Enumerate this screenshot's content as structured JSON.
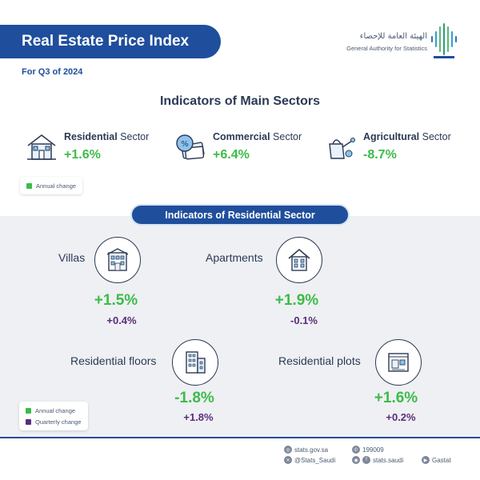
{
  "header": {
    "title": "Real Estate Price Index",
    "subtitle": "For Q3 of 2024",
    "logo_arabic": "الهيئة العامة للإحصاء",
    "logo_english": "General Authority for Statistics"
  },
  "main_sectors": {
    "heading": "Indicators of Main Sectors",
    "items": [
      {
        "name_bold": "Residential",
        "name_rest": " Sector",
        "value": "+1.6%",
        "icon": "house-icon"
      },
      {
        "name_bold": "Commercial",
        "name_rest": " Sector",
        "value": "+6.4%",
        "icon": "money-icon"
      },
      {
        "name_bold": "Agricultural",
        "name_rest": " Sector",
        "value": "-8.7%",
        "icon": "watering-can-icon"
      }
    ],
    "legend": {
      "annual": "Annual change"
    }
  },
  "residential": {
    "heading": "Indicators of Residential Sector",
    "items": [
      {
        "label": "Villas",
        "annual": "+1.5%",
        "quarterly": "+0.4%",
        "icon": "villa-icon"
      },
      {
        "label": "Apartments",
        "annual": "+1.9%",
        "quarterly": "-0.1%",
        "icon": "apartment-icon"
      },
      {
        "label": "Residential floors",
        "annual": "-1.8%",
        "quarterly": "+1.8%",
        "icon": "floors-icon"
      },
      {
        "label": "Residential plots",
        "annual": "+1.6%",
        "quarterly": "+0.2%",
        "icon": "plot-icon"
      }
    ],
    "legend": {
      "annual": "Annual change",
      "quarterly": "Quarterly change"
    }
  },
  "footer": {
    "website": "stats.gov.sa",
    "phone": "199009",
    "x_handle": "@Stats_Saudi",
    "social": "stats.saudi",
    "brand": "Gastat"
  },
  "colors": {
    "primary_blue": "#1f4e9c",
    "positive_green": "#3dbb4a",
    "quarterly_purple": "#5a2d7a",
    "panel_gray": "#eef0f3"
  }
}
